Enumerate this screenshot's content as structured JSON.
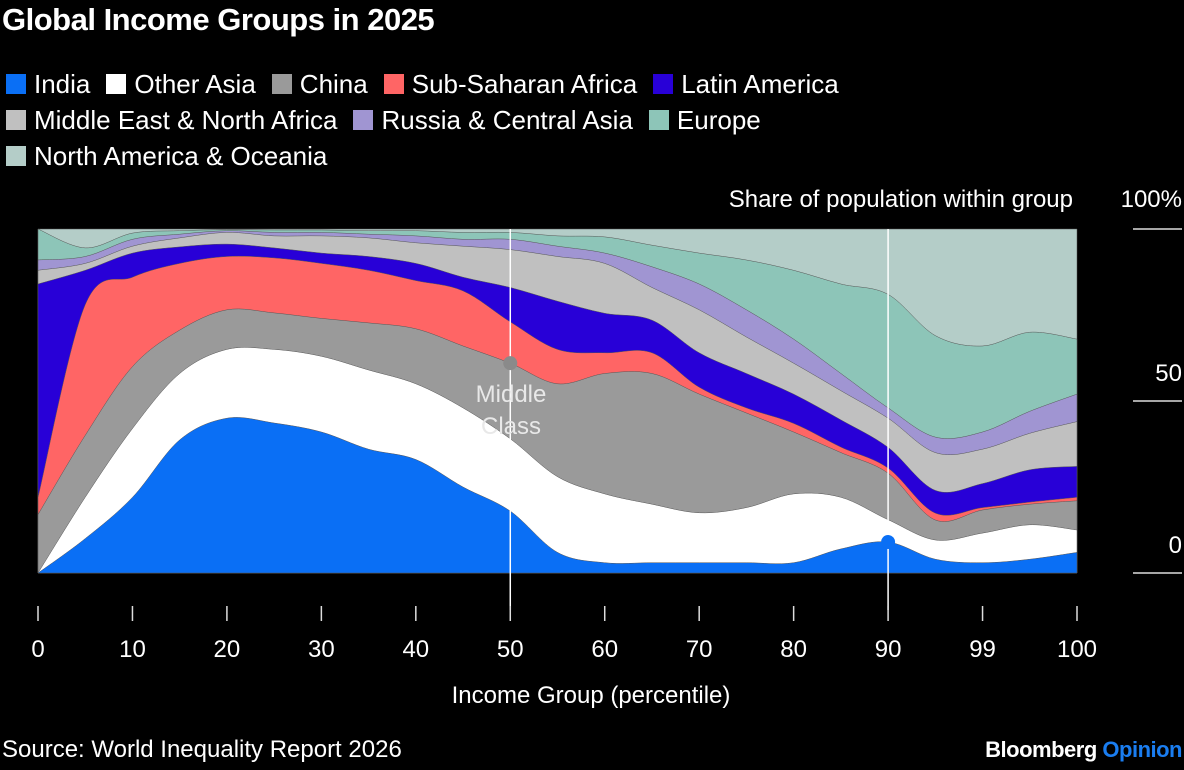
{
  "title": "Global Income Groups in 2025",
  "source": "Source: World Inequality Report 2026",
  "logo": {
    "brand": "Bloomberg",
    "section": "Opinion"
  },
  "chart_data": {
    "type": "area",
    "stacked": true,
    "title": "Global Income Groups in 2025",
    "xlabel": "Income Group (percentile)",
    "ylabel": "Share of population within group",
    "x_ticks": [
      0,
      10,
      20,
      30,
      40,
      50,
      60,
      70,
      80,
      90,
      99,
      100
    ],
    "y_ticks": [
      {
        "value": 100,
        "label": "100%"
      },
      {
        "value": 50,
        "label": "50"
      },
      {
        "value": 0,
        "label": "0"
      }
    ],
    "ylim": [
      0,
      100
    ],
    "legend": "top",
    "annotation": {
      "text_line1": "Middle",
      "text_line2": "Class",
      "x": 50
    },
    "markers": [
      {
        "x": 50,
        "series": "China"
      },
      {
        "x": 90,
        "series": "India"
      }
    ],
    "reference_lines_x": [
      50,
      90
    ],
    "x": [
      0,
      5,
      10,
      15,
      20,
      25,
      30,
      35,
      40,
      45,
      50,
      55,
      60,
      65,
      70,
      75,
      80,
      85,
      90,
      94.5,
      99,
      99.5,
      100
    ],
    "series": [
      {
        "name": "India",
        "color": "#0a6ff5",
        "values": [
          0,
          10,
          22,
          38.7,
          45,
          43.6,
          41,
          36,
          33,
          25,
          18,
          6,
          3,
          3,
          3,
          3,
          3,
          7,
          9,
          4,
          3,
          4,
          6
        ]
      },
      {
        "name": "Other Asia",
        "color": "#ffffff",
        "values": [
          0,
          12,
          20,
          19.3,
          20,
          21.4,
          22,
          23,
          22,
          23,
          21,
          22,
          20,
          17,
          14.5,
          16,
          20,
          15,
          6.5,
          5.6,
          8.6,
          10,
          6.5
        ]
      },
      {
        "name": "China",
        "color": "#9a9a9a",
        "values": [
          17,
          18,
          18,
          12.6,
          11.5,
          10.6,
          11,
          13.7,
          16,
          18,
          22,
          27,
          35,
          38,
          34.5,
          27.5,
          18,
          13,
          13.5,
          5.8,
          6.7,
          6,
          8.5
        ]
      },
      {
        "name": "Sub-Saharan Africa",
        "color": "#ff6565",
        "values": [
          5,
          38,
          26,
          19.4,
          15.5,
          16,
          16,
          15.3,
          14,
          16,
          12,
          10,
          6,
          6,
          2,
          1.5,
          2.5,
          1.6,
          1.5,
          2,
          0.7,
          0.6,
          1
        ]
      },
      {
        "name": "Latin America",
        "color": "#2800d7",
        "values": [
          62,
          10,
          7,
          4.8,
          3.6,
          2.9,
          3,
          4,
          5,
          4,
          10,
          14,
          11.5,
          9.5,
          10,
          10,
          8.5,
          7.9,
          6,
          6.6,
          7,
          9.4,
          9
        ]
      },
      {
        "name": "Middle East & North Africa",
        "color": "#c0c0c0",
        "values": [
          4,
          2,
          2,
          2.6,
          3.4,
          3.5,
          5,
          5.4,
          6,
          9,
          11,
          13,
          14.5,
          9.5,
          12.5,
          10.6,
          9,
          8.5,
          8.5,
          11,
          10,
          10.6,
          13
        ]
      },
      {
        "name": "Russia & Central Asia",
        "color": "#a095d2",
        "values": [
          3,
          2,
          2,
          1.1,
          0.5,
          1,
          1,
          1.1,
          2,
          2,
          3,
          3,
          3,
          6,
          7.5,
          7.9,
          7,
          5,
          3,
          4.5,
          5,
          6.4,
          8
        ]
      },
      {
        "name": "Europe",
        "color": "#8dc5b8",
        "values": [
          9,
          2.5,
          1.8,
          1,
          0.3,
          0.7,
          0.7,
          1,
          1.5,
          2,
          2,
          3,
          4.7,
          6.3,
          9,
          14.5,
          20,
          26,
          33,
          29.5,
          25,
          23,
          16
        ]
      },
      {
        "name": "North America & Oceania",
        "color": "#b4cdc8",
        "values": [
          0,
          5.5,
          1.2,
          0.5,
          0.2,
          0.3,
          0.3,
          0.5,
          0.5,
          1,
          1,
          2,
          2.3,
          4.7,
          7,
          9,
          12,
          16,
          19,
          31,
          34,
          30,
          32
        ]
      }
    ]
  }
}
